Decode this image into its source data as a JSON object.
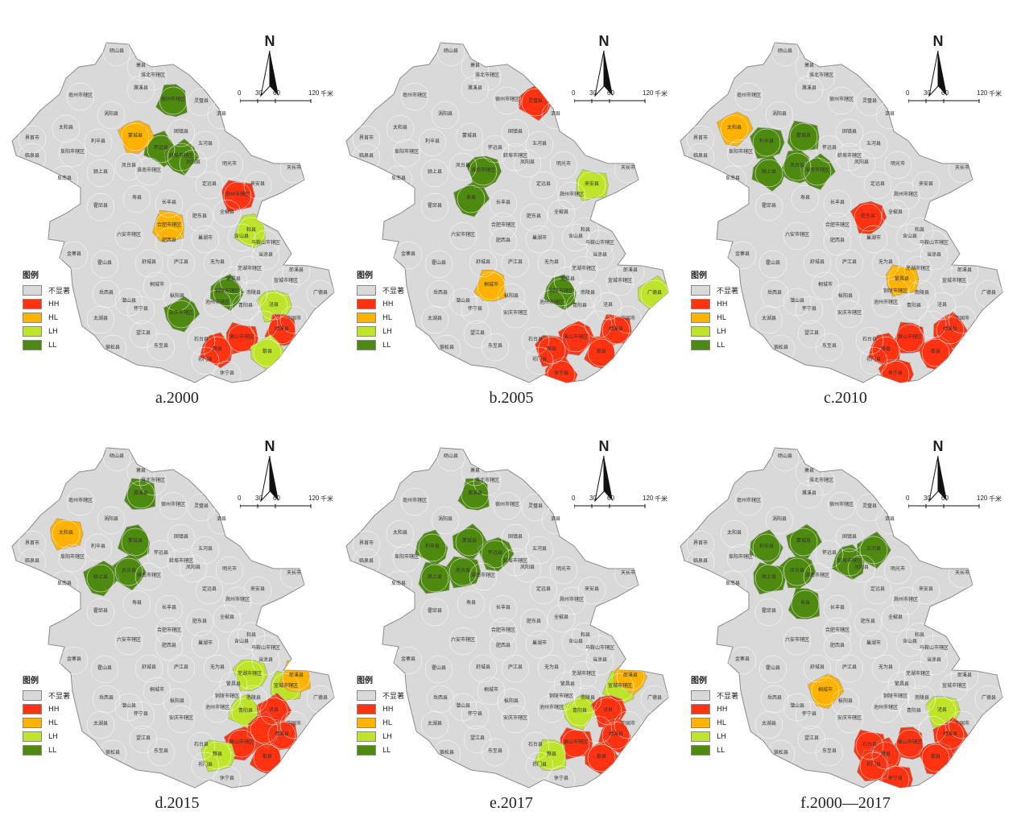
{
  "legend": {
    "title": "图例",
    "items": [
      {
        "label": "不显著",
        "color": "#d9d9d9"
      },
      {
        "label": "HH",
        "color": "#ff3311"
      },
      {
        "label": "HL",
        "color": "#ffb300"
      },
      {
        "label": "LH",
        "color": "#bde32a"
      },
      {
        "label": "LL",
        "color": "#4f8a10"
      }
    ]
  },
  "scale": {
    "ticks": [
      "0",
      "30",
      "60",
      "120"
    ],
    "unit": "千米"
  },
  "north": "N",
  "base_color": "#d9d9d9",
  "county_labels": [
    "砀山县",
    "萧县",
    "淮北市辖区",
    "亳州市辖区",
    "濉溪县",
    "宿州市辖区",
    "灵璧县",
    "涡阳县",
    "泗县",
    "太和县",
    "蒙城县",
    "利辛县",
    "固镇县",
    "界首市",
    "阜阳市辖区",
    "怀远县",
    "五河县",
    "临泉县",
    "凤台县",
    "蚌埠市辖区",
    "淮南市辖区",
    "凤阳县",
    "明光市",
    "颍上县",
    "阜南县",
    "天长市",
    "寿县",
    "定远县",
    "滁州市辖区",
    "来安县",
    "长丰县",
    "霍邱县",
    "肥东县",
    "全椒县",
    "合肥市辖区",
    "六安市辖区",
    "肥西县",
    "巢湖市",
    "含山县",
    "和县",
    "金寨县",
    "舒城县",
    "马鞍山市辖区",
    "当涂县",
    "霍山县",
    "庐江县",
    "无为县",
    "芜湖市辖区",
    "郎溪县",
    "岳西县",
    "桐城市",
    "铜陵市辖区",
    "宣城市辖区",
    "广德县",
    "潜山县",
    "枞阳县",
    "繁昌县",
    "南陵县",
    "太湖县",
    "怀宁县",
    "安庆市辖区",
    "池州市辖区",
    "青阳县",
    "泾县",
    "宁国市",
    "宿松县",
    "望江县",
    "东至县",
    "石台县",
    "黄山市辖区",
    "绩溪县",
    "黟县",
    "祁门县",
    "休宁县",
    "歙县"
  ],
  "panels": [
    {
      "caption": "a.2000",
      "regions": [
        {
          "county": "宿州市辖区",
          "cls": "LL"
        },
        {
          "county": "怀远县",
          "cls": "LL"
        },
        {
          "county": "蚌埠市辖区",
          "cls": "LL"
        },
        {
          "county": "蒙城县",
          "cls": "HL"
        },
        {
          "county": "滁州市辖区",
          "cls": "HH"
        },
        {
          "county": "合肥市辖区",
          "cls": "HL"
        },
        {
          "county": "和县",
          "cls": "LH"
        },
        {
          "county": "铜陵市辖区",
          "cls": "LL"
        },
        {
          "county": "安庆市辖区",
          "cls": "LL"
        },
        {
          "county": "泾县",
          "cls": "LH"
        },
        {
          "county": "黄山市辖区",
          "cls": "HH"
        },
        {
          "county": "绩溪县",
          "cls": "HH"
        },
        {
          "county": "黟县",
          "cls": "HH"
        },
        {
          "county": "歙县",
          "cls": "LH"
        }
      ]
    },
    {
      "caption": "b.2005",
      "regions": [
        {
          "county": "灵璧县",
          "cls": "HH"
        },
        {
          "county": "寿县",
          "cls": "LL"
        },
        {
          "county": "淮南市辖区",
          "cls": "LL"
        },
        {
          "county": "来安县",
          "cls": "LH"
        },
        {
          "county": "桐城市",
          "cls": "HL"
        },
        {
          "county": "铜陵市辖区",
          "cls": "LL"
        },
        {
          "county": "广德县",
          "cls": "LH"
        },
        {
          "county": "黄山市辖区",
          "cls": "HH"
        },
        {
          "county": "黟县",
          "cls": "HH"
        },
        {
          "county": "绩溪县",
          "cls": "HH"
        },
        {
          "county": "歙县",
          "cls": "HH"
        },
        {
          "county": "休宁县",
          "cls": "HH"
        }
      ]
    },
    {
      "caption": "c.2010",
      "regions": [
        {
          "county": "太和县",
          "cls": "HL"
        },
        {
          "county": "利辛县",
          "cls": "LL"
        },
        {
          "county": "蒙城县",
          "cls": "LL"
        },
        {
          "county": "凤台县",
          "cls": "LL"
        },
        {
          "county": "颍上县",
          "cls": "LL"
        },
        {
          "county": "淮南市辖区",
          "cls": "LL"
        },
        {
          "county": "肥东县",
          "cls": "HH"
        },
        {
          "county": "繁昌县",
          "cls": "HL"
        },
        {
          "county": "黄山市辖区",
          "cls": "HH"
        },
        {
          "county": "黟县",
          "cls": "HH"
        },
        {
          "county": "绩溪县",
          "cls": "HH"
        },
        {
          "county": "歙县",
          "cls": "HH"
        },
        {
          "county": "休宁县",
          "cls": "HH"
        }
      ]
    },
    {
      "caption": "d.2015",
      "regions": [
        {
          "county": "太和县",
          "cls": "HL"
        },
        {
          "county": "濉溪县",
          "cls": "LL"
        },
        {
          "county": "蒙城县",
          "cls": "LL"
        },
        {
          "county": "凤台县",
          "cls": "LL"
        },
        {
          "county": "颍上县",
          "cls": "LL"
        },
        {
          "county": "芜湖市辖区",
          "cls": "LH"
        },
        {
          "county": "宣城市辖区",
          "cls": "LH"
        },
        {
          "county": "郎溪县",
          "cls": "HL"
        },
        {
          "county": "青阳县",
          "cls": "LH"
        },
        {
          "county": "泾县",
          "cls": "HH"
        },
        {
          "county": "黄山市辖区",
          "cls": "HH"
        },
        {
          "county": "黟县",
          "cls": "LH"
        },
        {
          "county": "绩溪县",
          "cls": "HH"
        },
        {
          "county": "歙县",
          "cls": "HH"
        },
        {
          "county": "旌德县",
          "cls": "HH"
        }
      ]
    },
    {
      "caption": "e.2017",
      "regions": [
        {
          "county": "濉溪县",
          "cls": "LL"
        },
        {
          "county": "利辛县",
          "cls": "LL"
        },
        {
          "county": "蒙城县",
          "cls": "LL"
        },
        {
          "county": "怀远县",
          "cls": "LL"
        },
        {
          "county": "凤台县",
          "cls": "LL"
        },
        {
          "county": "颍上县",
          "cls": "LL"
        },
        {
          "county": "宣城市辖区",
          "cls": "LH"
        },
        {
          "county": "郎溪县",
          "cls": "HL"
        },
        {
          "county": "青阳县",
          "cls": "LH"
        },
        {
          "county": "泾县",
          "cls": "HH"
        },
        {
          "county": "黄山市辖区",
          "cls": "HH"
        },
        {
          "county": "黟县",
          "cls": "LH"
        },
        {
          "county": "绩溪县",
          "cls": "HH"
        },
        {
          "county": "歙县",
          "cls": "HH"
        }
      ]
    },
    {
      "caption": "f.2000—2017",
      "regions": [
        {
          "county": "利辛县",
          "cls": "LL"
        },
        {
          "county": "蒙城县",
          "cls": "LL"
        },
        {
          "county": "凤台县",
          "cls": "LL"
        },
        {
          "county": "颍上县",
          "cls": "LL"
        },
        {
          "county": "寿县",
          "cls": "LL"
        },
        {
          "county": "蚌埠市辖区",
          "cls": "LL"
        },
        {
          "county": "五河县",
          "cls": "LL"
        },
        {
          "county": "桐城市",
          "cls": "HL"
        },
        {
          "county": "泾县",
          "cls": "LH"
        },
        {
          "county": "石台县",
          "cls": "HH"
        },
        {
          "county": "黄山市辖区",
          "cls": "HH"
        },
        {
          "county": "黟县",
          "cls": "HH"
        },
        {
          "county": "绩溪县",
          "cls": "HH"
        },
        {
          "county": "歙县",
          "cls": "HH"
        },
        {
          "county": "休宁县",
          "cls": "HH"
        },
        {
          "county": "祁门县",
          "cls": "HH"
        }
      ]
    }
  ]
}
